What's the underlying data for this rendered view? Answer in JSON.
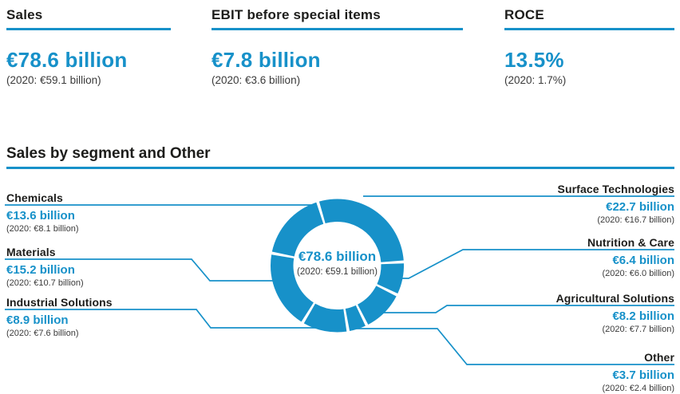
{
  "brand": {
    "accent_blue": "#1791c9",
    "text_dark": "#1d1d1b",
    "text_muted": "#3a3a3a"
  },
  "kpis": [
    {
      "title": "Sales",
      "value": "€78.6 billion",
      "prior": "(2020: €59.1 billion)"
    },
    {
      "title": "EBIT before special items",
      "value": "€7.8 billion",
      "prior": "(2020: €3.6 billion)"
    },
    {
      "title": "ROCE",
      "value": "13.5%",
      "prior": "(2020: 1.7%)"
    }
  ],
  "section_title": "Sales by segment and Other",
  "chart_data": {
    "type": "pie",
    "subtype": "donut",
    "title": "Sales by segment and Other",
    "unit": "EUR billion",
    "total_value": 78.6,
    "prior_total_value": 59.1,
    "center_label": "€78.6 billion",
    "center_sublabel": "(2020: €59.1 billion)",
    "slice_color": "#1791c9",
    "start_angle_deg_from_north": -17,
    "clockwise_order": [
      "Surface Technologies",
      "Nutrition & Care",
      "Agricultural Solutions",
      "Other",
      "Industrial Solutions",
      "Materials",
      "Chemicals"
    ],
    "segments": [
      {
        "label": "Chemicals",
        "value": 13.6,
        "prior": 8.1,
        "value_label": "€13.6 billion",
        "prior_label": "(2020: €8.1 billion)",
        "side": "left"
      },
      {
        "label": "Materials",
        "value": 15.2,
        "prior": 10.7,
        "value_label": "€15.2 billion",
        "prior_label": "(2020: €10.7 billion)",
        "side": "left"
      },
      {
        "label": "Industrial Solutions",
        "value": 8.9,
        "prior": 7.6,
        "value_label": "€8.9 billion",
        "prior_label": "(2020: €7.6 billion)",
        "side": "left"
      },
      {
        "label": "Surface Technologies",
        "value": 22.7,
        "prior": 16.7,
        "value_label": "€22.7 billion",
        "prior_label": "(2020: €16.7 billion)",
        "side": "right"
      },
      {
        "label": "Nutrition & Care",
        "value": 6.4,
        "prior": 6.0,
        "value_label": "€6.4 billion",
        "prior_label": "(2020: €6.0 billion)",
        "side": "right"
      },
      {
        "label": "Agricultural Solutions",
        "value": 8.2,
        "prior": 7.7,
        "value_label": "€8.2 billion",
        "prior_label": "(2020: €7.7 billion)",
        "side": "right"
      },
      {
        "label": "Other",
        "value": 3.7,
        "prior": 2.4,
        "value_label": "€3.7 billion",
        "prior_label": "(2020: €2.4 billion)",
        "side": "right"
      }
    ]
  }
}
